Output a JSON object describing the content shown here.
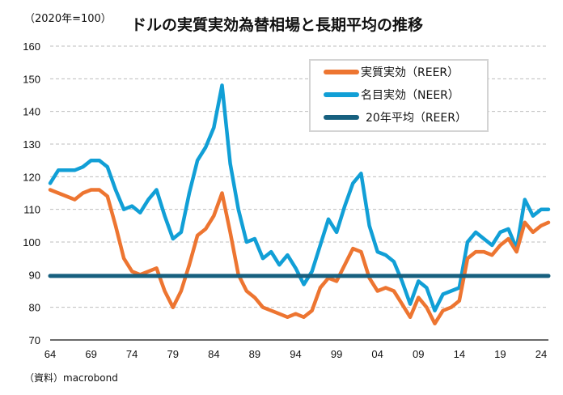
{
  "chart_data": {
    "type": "line",
    "title": "ドルの実質実効為替相場と長期平均の推移",
    "unit_label": "（2020年=100）",
    "source": "（資料）macrobond",
    "xlabel": "",
    "ylabel": "",
    "ylim": [
      70,
      160
    ],
    "xlim": [
      1964,
      2025
    ],
    "yticks": [
      70,
      80,
      90,
      100,
      110,
      120,
      130,
      140,
      150,
      160
    ],
    "xticks": [
      {
        "year": 1964,
        "label": "64"
      },
      {
        "year": 1969,
        "label": "69"
      },
      {
        "year": 1974,
        "label": "74"
      },
      {
        "year": 1979,
        "label": "79"
      },
      {
        "year": 1984,
        "label": "84"
      },
      {
        "year": 1989,
        "label": "89"
      },
      {
        "year": 1994,
        "label": "94"
      },
      {
        "year": 1999,
        "label": "99"
      },
      {
        "year": 2004,
        "label": "04"
      },
      {
        "year": 2009,
        "label": "09"
      },
      {
        "year": 2014,
        "label": "14"
      },
      {
        "year": 2019,
        "label": "19"
      },
      {
        "year": 2024,
        "label": "24"
      }
    ],
    "grid": "horizontal-dashed",
    "legend_position": "top-right",
    "x": [
      1964,
      1965,
      1966,
      1967,
      1968,
      1969,
      1970,
      1971,
      1972,
      1973,
      1974,
      1975,
      1976,
      1977,
      1978,
      1979,
      1980,
      1981,
      1982,
      1983,
      1984,
      1985,
      1986,
      1987,
      1988,
      1989,
      1990,
      1991,
      1992,
      1993,
      1994,
      1995,
      1996,
      1997,
      1998,
      1999,
      2000,
      2001,
      2002,
      2003,
      2004,
      2005,
      2006,
      2007,
      2008,
      2009,
      2010,
      2011,
      2012,
      2013,
      2014,
      2015,
      2016,
      2017,
      2018,
      2019,
      2020,
      2021,
      2022,
      2023,
      2024,
      2025
    ],
    "series": [
      {
        "name": "実質実効（REER）",
        "color": "#ed7531",
        "values": [
          116,
          115,
          114,
          113,
          115,
          116,
          116,
          114,
          105,
          95,
          91,
          90,
          91,
          92,
          85,
          80,
          85,
          93,
          102,
          104,
          108,
          115,
          103,
          90,
          85,
          83,
          80,
          79,
          78,
          77,
          78,
          77,
          79,
          86,
          89,
          88,
          93,
          98,
          97,
          89,
          85,
          86,
          85,
          81,
          77,
          83,
          80,
          75,
          79,
          80,
          82,
          95,
          97,
          97,
          96,
          99,
          101,
          97,
          106,
          103,
          105,
          106
        ]
      },
      {
        "name": "名目実効（NEER）",
        "color": "#119fd6",
        "values": [
          118,
          122,
          122,
          122,
          123,
          125,
          125,
          123,
          116,
          110,
          111,
          109,
          113,
          116,
          108,
          101,
          103,
          115,
          125,
          129,
          135,
          148,
          124,
          110,
          100,
          101,
          95,
          97,
          93,
          96,
          92,
          87,
          91,
          99,
          107,
          103,
          111,
          118,
          121,
          105,
          97,
          96,
          94,
          88,
          81,
          88,
          86,
          79,
          84,
          85,
          86,
          100,
          103,
          101,
          99,
          103,
          104,
          98,
          113,
          108,
          110,
          110
        ]
      },
      {
        "name": "20年平均（REER）",
        "color": "#17607f",
        "values": [
          89.6,
          89.6
        ]
      }
    ]
  }
}
